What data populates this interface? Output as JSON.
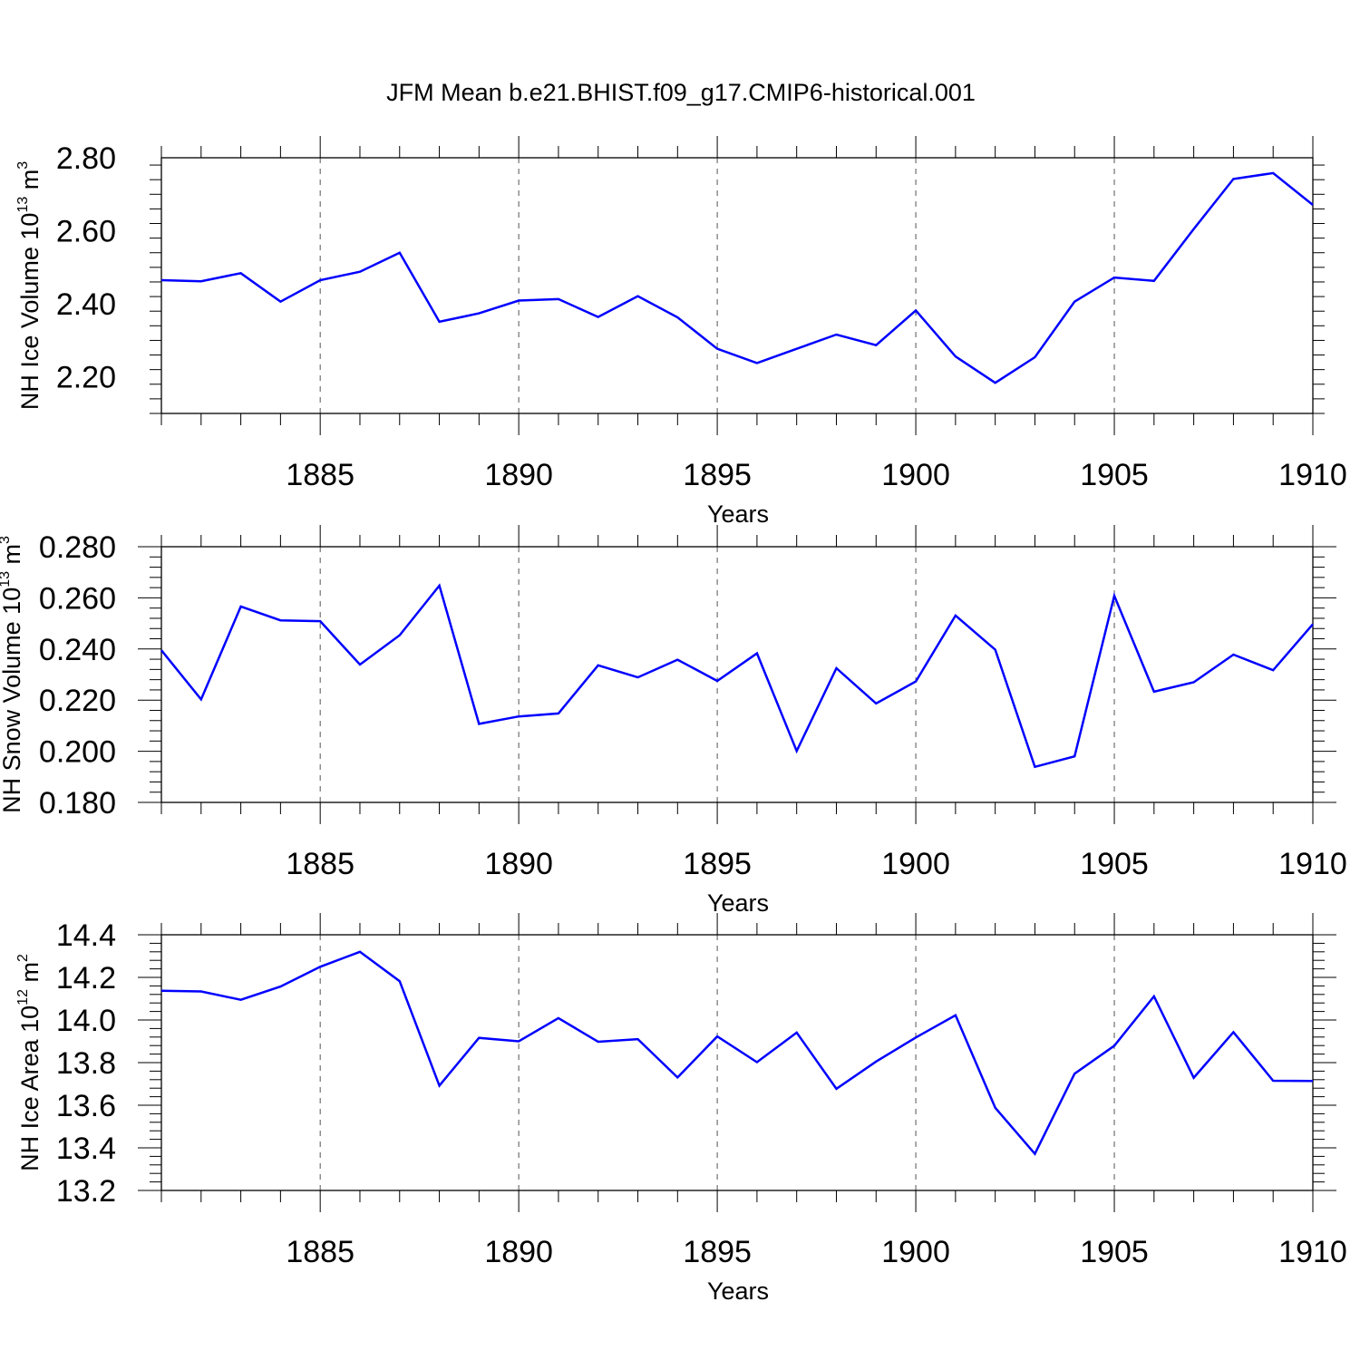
{
  "title": "JFM Mean b.e21.BHIST.f09_g17.CMIP6-historical.001",
  "line_color": "#0000ff",
  "grid": "dashed at major x ticks",
  "chart_data": [
    {
      "type": "line",
      "ylabel": {
        "main": "NH Ice Volume 10",
        "sup": "13",
        "unit": " m",
        "unit_sup": "3"
      },
      "xlabel": "Years",
      "xlim": [
        1881,
        1910
      ],
      "ylim": [
        2.1,
        2.8
      ],
      "yticks": [
        2.2,
        2.4,
        2.6,
        2.8
      ],
      "ytick_labels": [
        "2.20",
        "2.40",
        "2.60",
        "2.80"
      ],
      "xticks": [
        1885,
        1890,
        1895,
        1900,
        1905,
        1910
      ],
      "xtick_labels": [
        "1885",
        "1890",
        "1895",
        "1900",
        "1905",
        "1910"
      ],
      "x": [
        1881,
        1882,
        1883,
        1884,
        1885,
        1886,
        1887,
        1888,
        1889,
        1890,
        1891,
        1892,
        1893,
        1894,
        1895,
        1896,
        1897,
        1898,
        1899,
        1900,
        1901,
        1902,
        1903,
        1904,
        1905,
        1906,
        1907,
        1908,
        1909,
        1910
      ],
      "values": [
        2.465,
        2.462,
        2.484,
        2.406,
        2.465,
        2.488,
        2.54,
        2.351,
        2.374,
        2.409,
        2.413,
        2.364,
        2.421,
        2.363,
        2.277,
        2.238,
        2.277,
        2.316,
        2.287,
        2.382,
        2.256,
        2.184,
        2.254,
        2.406,
        2.472,
        2.463,
        2.605,
        2.742,
        2.758,
        2.671
      ]
    },
    {
      "type": "line",
      "ylabel": {
        "main": "NH Snow Volume 10",
        "sup": "13",
        "unit": " m",
        "unit_sup": "3"
      },
      "xlabel": "Years",
      "xlim": [
        1881,
        1910
      ],
      "ylim": [
        0.18,
        0.28
      ],
      "yticks": [
        0.18,
        0.2,
        0.22,
        0.24,
        0.26,
        0.28
      ],
      "ytick_labels": [
        "0.180",
        "0.200",
        "0.220",
        "0.240",
        "0.260",
        "0.280"
      ],
      "xticks": [
        1885,
        1890,
        1895,
        1900,
        1905,
        1910
      ],
      "xtick_labels": [
        "1885",
        "1890",
        "1895",
        "1900",
        "1905",
        "1910"
      ],
      "x": [
        1881,
        1882,
        1883,
        1884,
        1885,
        1886,
        1887,
        1888,
        1889,
        1890,
        1891,
        1892,
        1893,
        1894,
        1895,
        1896,
        1897,
        1898,
        1899,
        1900,
        1901,
        1902,
        1903,
        1904,
        1905,
        1906,
        1907,
        1908,
        1909,
        1910
      ],
      "values": [
        0.2395,
        0.2203,
        0.2566,
        0.2512,
        0.2509,
        0.2339,
        0.2454,
        0.2648,
        0.2107,
        0.2136,
        0.2148,
        0.2336,
        0.2289,
        0.2358,
        0.2275,
        0.2383,
        0.2001,
        0.2325,
        0.2187,
        0.2273,
        0.2531,
        0.2397,
        0.1939,
        0.198,
        0.2608,
        0.2233,
        0.227,
        0.2378,
        0.2317,
        0.2497
      ]
    },
    {
      "type": "line",
      "ylabel": {
        "main": "NH Ice Area 10",
        "sup": "12",
        "unit": " m",
        "unit_sup": "2"
      },
      "xlabel": "Years",
      "xlim": [
        1881,
        1910
      ],
      "ylim": [
        13.2,
        14.4
      ],
      "yticks": [
        13.2,
        13.4,
        13.6,
        13.8,
        14.0,
        14.2,
        14.4
      ],
      "ytick_labels": [
        "13.2",
        "13.4",
        "13.6",
        "13.8",
        "14.0",
        "14.2",
        "14.4"
      ],
      "xticks": [
        1885,
        1890,
        1895,
        1900,
        1905,
        1910
      ],
      "xtick_labels": [
        "1885",
        "1890",
        "1895",
        "1900",
        "1905",
        "1910"
      ],
      "x": [
        1881,
        1882,
        1883,
        1884,
        1885,
        1886,
        1887,
        1888,
        1889,
        1890,
        1891,
        1892,
        1893,
        1894,
        1895,
        1896,
        1897,
        1898,
        1899,
        1900,
        1901,
        1902,
        1903,
        1904,
        1905,
        1906,
        1907,
        1908,
        1909,
        1910
      ],
      "values": [
        14.137,
        14.134,
        14.095,
        14.157,
        14.25,
        14.32,
        14.182,
        13.692,
        13.916,
        13.9,
        14.009,
        13.898,
        13.91,
        13.73,
        13.923,
        13.802,
        13.941,
        13.677,
        13.805,
        13.918,
        14.022,
        13.588,
        13.372,
        13.748,
        13.879,
        14.111,
        13.729,
        13.943,
        13.715,
        13.714
      ]
    }
  ]
}
